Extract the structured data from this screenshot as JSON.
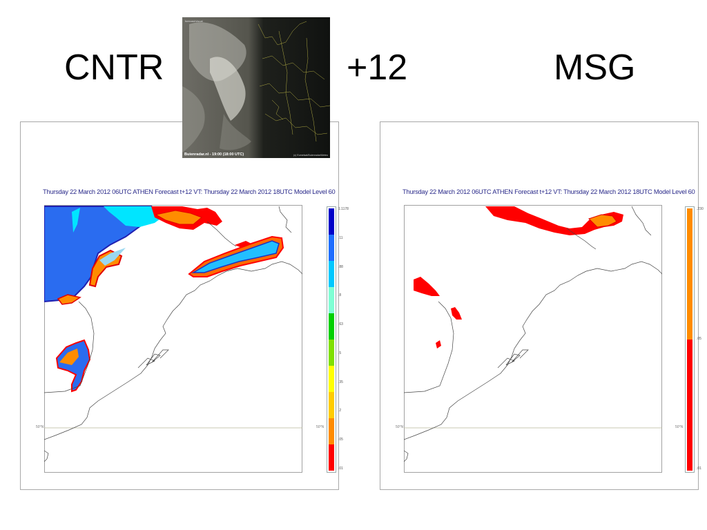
{
  "titles": {
    "left": "CNTR",
    "center": "+12",
    "right": "MSG"
  },
  "thumbnail": {
    "caption": "Buienradar.nl - 19:00 (18:00 UTC)",
    "credit": "(c) Eumetsat/Buienradar/Meteo",
    "top_line": "forecast/visual"
  },
  "panels": {
    "left": {
      "heading": "Thursday 22 March 2012 06UTC ATHEN  Forecast t+12 VT: Thursday 22 March 2012 18UTC Model Level 60",
      "lat_label": "50°N",
      "legend": {
        "ticks": [
          "1.1178",
          ".11",
          ".88",
          ".8",
          ".63",
          ".5",
          ".35",
          ".2",
          ".05",
          ".01"
        ],
        "colors": [
          "#0000c8",
          "#1e6eff",
          "#00c8ff",
          "#7fffd4",
          "#00d000",
          "#7fe000",
          "#ffff00",
          "#ffcc00",
          "#ff8c00",
          "#ff0000"
        ]
      }
    },
    "right": {
      "heading": "Thursday 22 March 2012 06UTC ATHEN  Forecast t+12 VT: Thursday 22 March 2012 18UTC Model Level 60",
      "lat_label": "50°N",
      "legend": {
        "ticks": [
          ".230",
          ".05",
          ".01"
        ],
        "colors": [
          "#ff8c00",
          "#ff0000"
        ]
      }
    }
  },
  "colors": {
    "red": "#ff0000",
    "orange": "#ff8c00",
    "cyan": "#00e5ff",
    "blue": "#1e6eff",
    "navy": "#2020b0",
    "coast": "#444444"
  }
}
